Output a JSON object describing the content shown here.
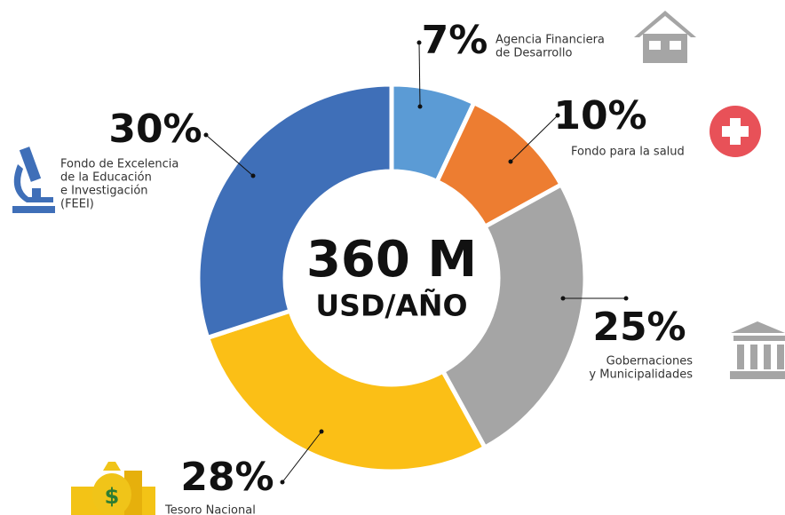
{
  "chart_data": {
    "type": "donut",
    "center_title": "360 M",
    "center_subtitle": "USD/AÑO",
    "categories": [
      [
        "Agencia Financiera",
        "de Desarrollo"
      ],
      [
        "Fondo para la salud"
      ],
      [
        "Gobernaciones",
        "y Municipalidades"
      ],
      [
        "Tesoro Nacional"
      ],
      [
        "Fondo de Excelencia",
        "de la Educación",
        "e Investigación",
        "(FEEI)"
      ]
    ],
    "values": [
      7,
      10,
      25,
      28,
      30
    ],
    "value_labels": [
      "7%",
      "10%",
      "25%",
      "28%",
      "30%"
    ],
    "colors": [
      "#5b9bd5",
      "#ed7d31",
      "#a5a5a5",
      "#fbbf16",
      "#3f6fb8"
    ]
  }
}
